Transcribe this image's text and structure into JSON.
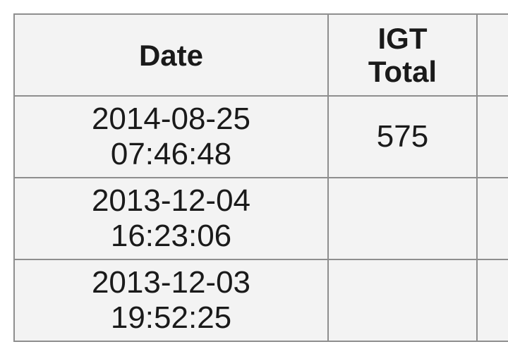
{
  "table": {
    "headers": {
      "date": "Date",
      "igt_line1": "IGT",
      "igt_line2": "Total",
      "extra": ""
    },
    "rows": [
      {
        "date_line1": "2014-08-25",
        "date_line2": "07:46:48",
        "igt_total": "575"
      },
      {
        "date_line1": "2013-12-04",
        "date_line2": "16:23:06",
        "igt_total": ""
      },
      {
        "date_line1": "2013-12-03",
        "date_line2": "19:52:25",
        "igt_total": ""
      }
    ]
  }
}
